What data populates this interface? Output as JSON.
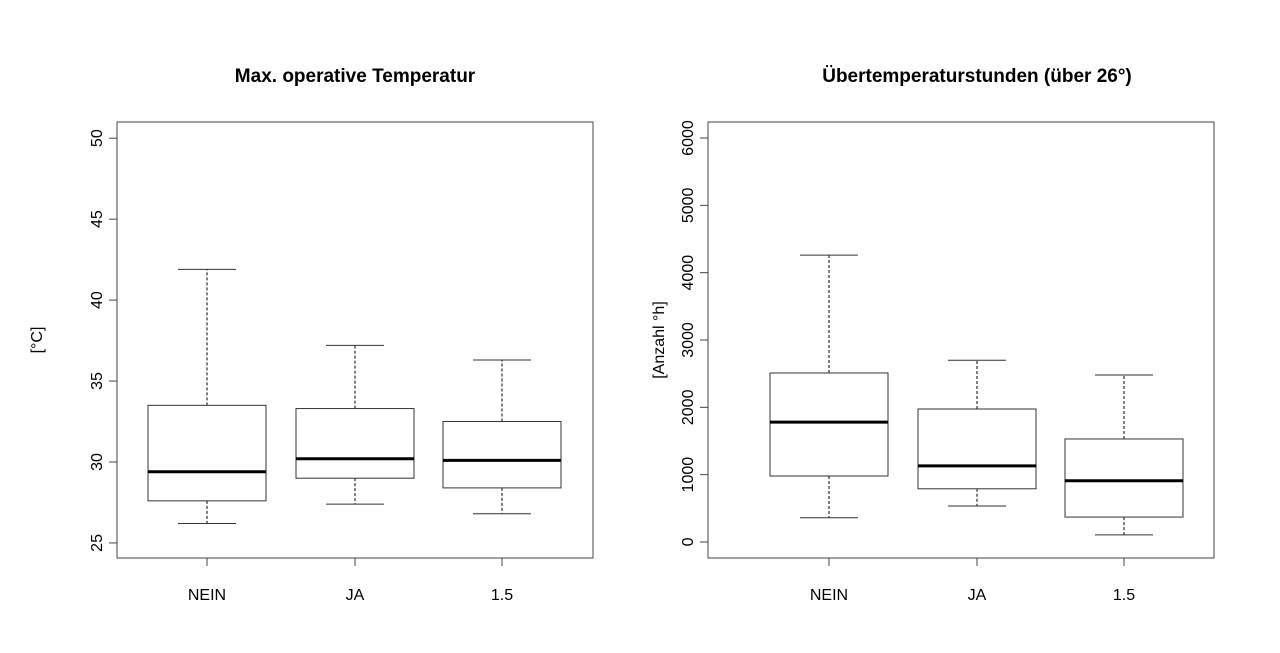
{
  "chart_data": [
    {
      "type": "boxplot",
      "title": "Max. operative Temperatur",
      "xlabel": "",
      "ylabel": "[°C]",
      "categories": [
        "NEIN",
        "JA",
        "1.5"
      ],
      "yticks": [
        25,
        30,
        35,
        40,
        45,
        50
      ],
      "ylim": [
        24.07,
        51.0
      ],
      "grid": false,
      "boxes": [
        {
          "category": "NEIN",
          "whisker_low": 26.2,
          "q1": 27.6,
          "median": 29.4,
          "q3": 33.5,
          "whisker_high": 41.9
        },
        {
          "category": "JA",
          "whisker_low": 27.4,
          "q1": 29.0,
          "median": 30.2,
          "q3": 33.3,
          "whisker_high": 37.2
        },
        {
          "category": "1.5",
          "whisker_low": 26.8,
          "q1": 28.4,
          "median": 30.1,
          "q3": 32.5,
          "whisker_high": 36.3
        }
      ]
    },
    {
      "type": "boxplot",
      "title": "Übertemperaturstunden (über 26°)",
      "xlabel": "",
      "ylabel": "[Anzahl °h]",
      "categories": [
        "NEIN",
        "JA",
        "1.5"
      ],
      "yticks": [
        0,
        1000,
        2000,
        3000,
        4000,
        5000,
        6000
      ],
      "ylim": [
        -238,
        6238
      ],
      "grid": false,
      "boxes": [
        {
          "category": "NEIN",
          "whisker_low": 360,
          "q1": 980,
          "median": 1780,
          "q3": 2510,
          "whisker_high": 4260
        },
        {
          "category": "JA",
          "whisker_low": 535,
          "q1": 790,
          "median": 1130,
          "q3": 1975,
          "whisker_high": 2700
        },
        {
          "category": "1.5",
          "whisker_low": 105,
          "q1": 370,
          "median": 910,
          "q3": 1530,
          "whisker_high": 2480
        }
      ]
    }
  ]
}
